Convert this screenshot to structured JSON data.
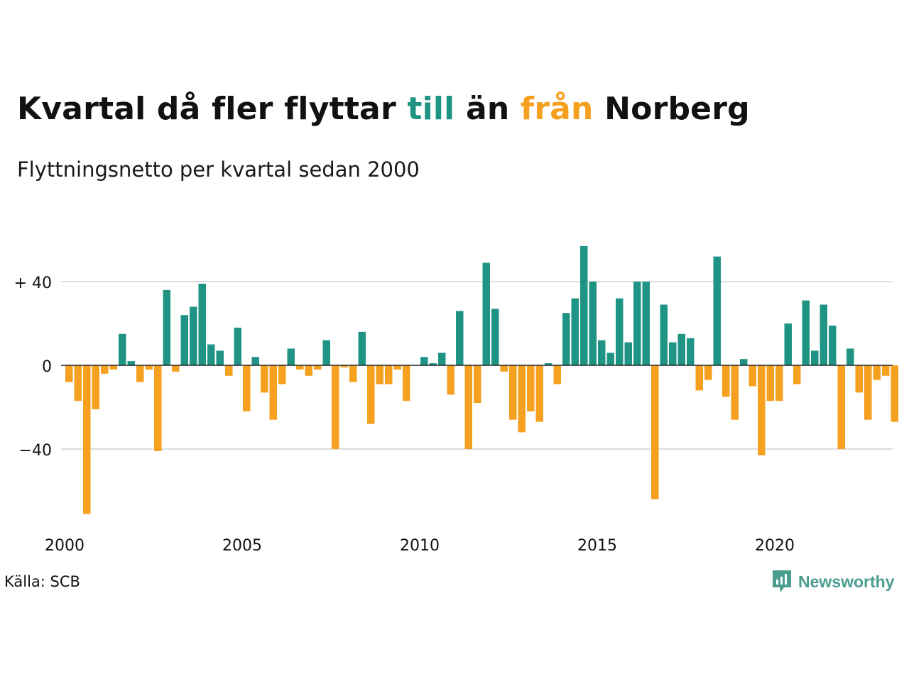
{
  "header": {
    "title_parts": [
      "Kvartal då fler flyttar ",
      "till",
      " än ",
      "från",
      " Norberg"
    ],
    "subtitle": "Flyttningsnetto per kvartal sedan 2000"
  },
  "footer": {
    "source": "Källa: SCB",
    "brand": "Newsworthy",
    "brand_icon": "chart-bubble-icon"
  },
  "colors": {
    "positive": "#1f9484",
    "negative": "#f5a01e",
    "grid": "#dddddd",
    "zero_line": "#222222",
    "brand": "#4a9d8f"
  },
  "chart_data": {
    "type": "bar",
    "title": "Kvartal då fler flyttar till än från Norberg",
    "subtitle": "Flyttningsnetto per kvartal sedan 2000",
    "start": {
      "year": 2000,
      "quarter": 1
    },
    "ylim": [
      -72,
      58
    ],
    "y_ticks": [
      {
        "value": 40,
        "label": "+ 40"
      },
      {
        "value": 0,
        "label": "0"
      },
      {
        "value": -40,
        "label": "−40"
      }
    ],
    "x_ticks": [
      {
        "value": 2000,
        "label": "2000"
      },
      {
        "value": 2005,
        "label": "2005"
      },
      {
        "value": 2010,
        "label": "2010"
      },
      {
        "value": 2015,
        "label": "2015"
      },
      {
        "value": 2020,
        "label": "2020"
      }
    ],
    "grid": true,
    "values": [
      -8,
      -17,
      -71,
      -21,
      -4,
      -2,
      15,
      2,
      -8,
      -2,
      -41,
      36,
      -3,
      24,
      28,
      39,
      10,
      7,
      -5,
      18,
      -22,
      4,
      -13,
      -26,
      -9,
      8,
      -2,
      -5,
      -2,
      12,
      -40,
      -1,
      -8,
      16,
      -28,
      -9,
      -9,
      -2,
      -17,
      0,
      4,
      1,
      6,
      -14,
      26,
      -40,
      -18,
      49,
      27,
      -3,
      -26,
      -32,
      -22,
      -27,
      1,
      -9,
      25,
      32,
      57,
      40,
      12,
      6,
      32,
      11,
      40,
      40,
      -64,
      29,
      11,
      15,
      13,
      -12,
      -7,
      52,
      -15,
      -26,
      3,
      -10,
      -43,
      -17,
      -17,
      20,
      -9,
      31,
      7,
      29,
      19,
      -40,
      8,
      -13,
      -26,
      -7,
      -5,
      -27
    ]
  }
}
